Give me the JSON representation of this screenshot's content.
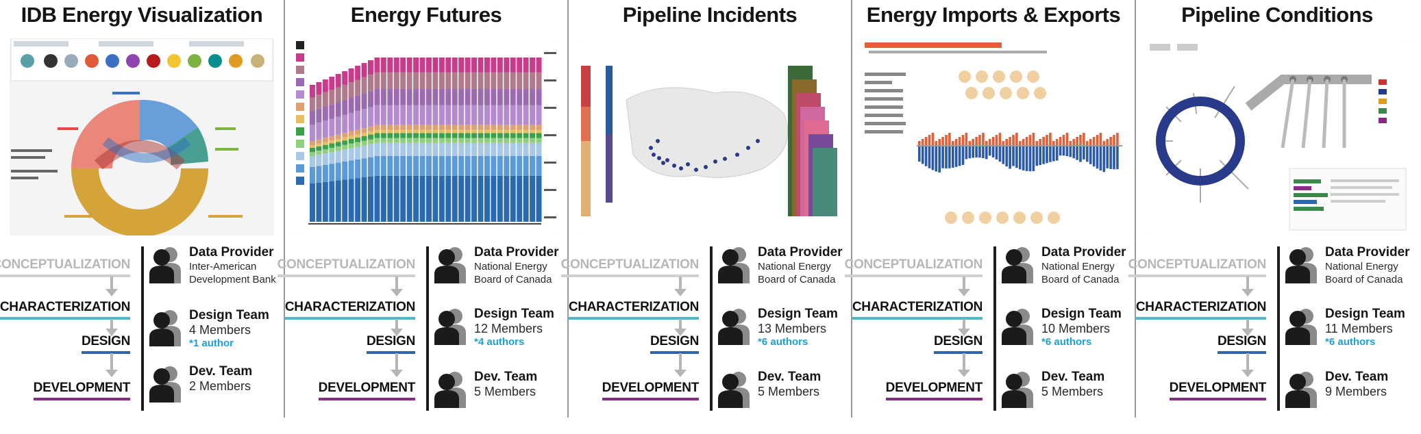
{
  "panels": [
    {
      "title": "IDB Energy Visualization",
      "stages": {
        "conceptualization": "CONCEPTUALIZATION",
        "characterization": "CHARACTERIZATION",
        "design": "DESIGN",
        "development": "DEVELOPMENT"
      },
      "data_provider": {
        "heading": "Data Provider",
        "name_line1": "Inter-American",
        "name_line2": "Development Bank"
      },
      "design_team": {
        "heading": "Design Team",
        "members": "4 Members",
        "authors": "*1 author"
      },
      "dev_team": {
        "heading": "Dev. Team",
        "members": "2 Members"
      }
    },
    {
      "title": "Energy Futures",
      "stages": {
        "conceptualization": "CONCEPTUALIZATION",
        "characterization": "CHARACTERIZATION",
        "design": "DESIGN",
        "development": "DEVELOPMENT"
      },
      "data_provider": {
        "heading": "Data Provider",
        "name_line1": "National Energy",
        "name_line2": "Board of Canada"
      },
      "design_team": {
        "heading": "Design Team",
        "members": "12 Members",
        "authors": "*4 authors"
      },
      "dev_team": {
        "heading": "Dev. Team",
        "members": "5 Members"
      }
    },
    {
      "title": "Pipeline Incidents",
      "stages": {
        "conceptualization": "CONCEPTUALIZATION",
        "characterization": "CHARACTERIZATION",
        "design": "DESIGN",
        "development": "DEVELOPMENT"
      },
      "data_provider": {
        "heading": "Data Provider",
        "name_line1": "National Energy",
        "name_line2": "Board of Canada"
      },
      "design_team": {
        "heading": "Design Team",
        "members": "13 Members",
        "authors": "*6 authors"
      },
      "dev_team": {
        "heading": "Dev. Team",
        "members": "5 Members"
      }
    },
    {
      "title": "Energy Imports & Exports",
      "stages": {
        "conceptualization": "CONCEPTUALIZATION",
        "characterization": "CHARACTERIZATION",
        "design": "DESIGN",
        "development": "DEVELOPMENT"
      },
      "data_provider": {
        "heading": "Data Provider",
        "name_line1": "National Energy",
        "name_line2": "Board of Canada"
      },
      "design_team": {
        "heading": "Design Team",
        "members": "10 Members",
        "authors": "*6 authors"
      },
      "dev_team": {
        "heading": "Dev. Team",
        "members": "5 Members"
      }
    },
    {
      "title": "Pipeline Conditions",
      "stages": {
        "conceptualization": "CONCEPTUALIZATION",
        "characterization": "CHARACTERIZATION",
        "design": "DESIGN",
        "development": "DEVELOPMENT"
      },
      "data_provider": {
        "heading": "Data Provider",
        "name_line1": "National Energy",
        "name_line2": "Board of Canada"
      },
      "design_team": {
        "heading": "Design Team",
        "members": "11 Members",
        "authors": "*6 authors"
      },
      "dev_team": {
        "heading": "Dev. Team",
        "members": "9 Members"
      }
    }
  ],
  "colors": {
    "concept": "#cfcfcf",
    "char": "#4cb8c8",
    "design": "#2f64a8",
    "dev": "#8a2a86",
    "author": "#1f9fd6"
  }
}
